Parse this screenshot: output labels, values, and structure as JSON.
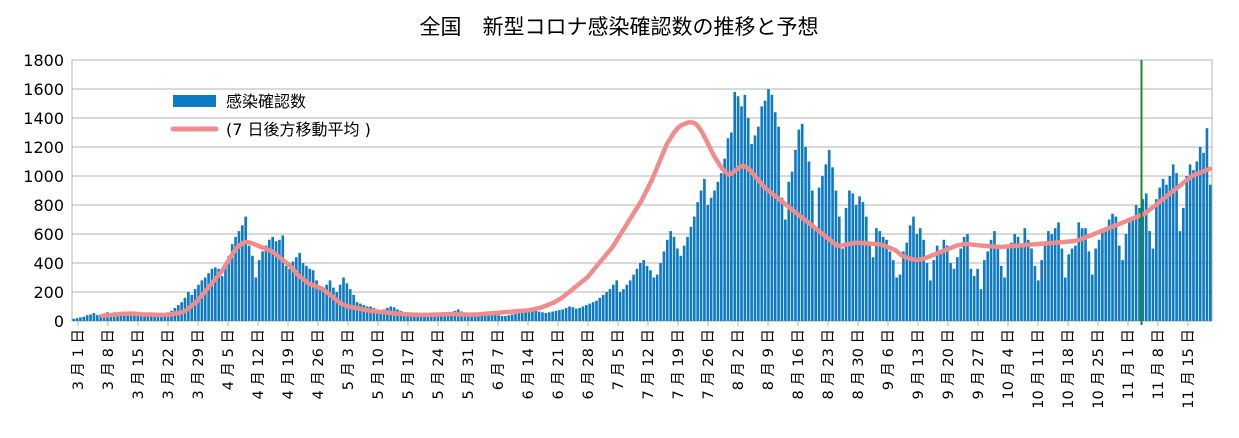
{
  "chart_data": {
    "type": "bar",
    "title": "全国　新型コロナ感染確認数の推移と予想",
    "ylim": [
      0,
      1800
    ],
    "yticks": [
      0,
      200,
      400,
      600,
      800,
      1000,
      1200,
      1400,
      1600,
      1800
    ],
    "grid": true,
    "legend_placement": "top-left",
    "marker_label_index": 35,
    "x_tick_labels": [
      "3 月 1 日",
      "3 月 8 日",
      "3 月 15 日",
      "3 月 22 日",
      "3 月 29 日",
      "4 月 5 日",
      "4 月 12 日",
      "4 月 19 日",
      "4 月 26 日",
      "5 月 3 日",
      "5 月 10 日",
      "5 月 17 日",
      "5 月 24 日",
      "5 月 31 日",
      "6 月 7 日",
      "6 月 14 日",
      "6 月 21 日",
      "6 月 28 日",
      "7 月 5 日",
      "7 月 12 日",
      "7 月 19 日",
      "7 月 26 日",
      "8 月 2 日",
      "8 月 9 日",
      "8 月 16 日",
      "8 月 23 日",
      "8 月 30 日",
      "9 月 6 日",
      "9 月 13 日",
      "9 月 20 日",
      "9 月 27 日",
      "10 月 4 日",
      "10 月 11 日",
      "10 月 18 日",
      "10 月 25 日",
      "11 月 1 日",
      "11 月 8 日",
      "11 月 15 日"
    ],
    "series": [
      {
        "name": "感染確認数",
        "kind": "bar",
        "color": "#0e7ac4",
        "values": [
          15,
          20,
          25,
          30,
          40,
          45,
          55,
          40,
          45,
          50,
          60,
          55,
          60,
          50,
          45,
          50,
          40,
          45,
          40,
          35,
          40,
          45,
          40,
          40,
          35,
          40,
          45,
          50,
          60,
          70,
          90,
          110,
          130,
          160,
          200,
          180,
          220,
          250,
          280,
          300,
          330,
          360,
          370,
          360,
          310,
          400,
          450,
          530,
          580,
          620,
          660,
          720,
          520,
          450,
          300,
          420,
          480,
          520,
          560,
          580,
          550,
          560,
          590,
          380,
          360,
          410,
          440,
          470,
          400,
          380,
          360,
          350,
          280,
          230,
          210,
          250,
          280,
          230,
          200,
          250,
          300,
          260,
          220,
          180,
          130,
          120,
          110,
          100,
          100,
          90,
          80,
          70,
          80,
          90,
          100,
          95,
          80,
          70,
          60,
          60,
          55,
          50,
          45,
          40,
          40,
          35,
          30,
          30,
          35,
          40,
          45,
          50,
          60,
          70,
          80,
          65,
          55,
          50,
          45,
          40,
          35,
          40,
          45,
          50,
          50,
          45,
          40,
          35,
          35,
          40,
          45,
          50,
          60,
          65,
          70,
          75,
          80,
          70,
          65,
          60,
          55,
          60,
          65,
          70,
          75,
          80,
          90,
          100,
          95,
          85,
          90,
          100,
          110,
          120,
          130,
          140,
          160,
          180,
          200,
          220,
          250,
          280,
          200,
          220,
          250,
          280,
          320,
          360,
          400,
          420,
          380,
          350,
          300,
          320,
          400,
          480,
          560,
          620,
          580,
          500,
          450,
          520,
          580,
          650,
          720,
          820,
          900,
          980,
          800,
          850,
          900,
          960,
          1020,
          1120,
          1260,
          1300,
          1580,
          1550,
          1480,
          1560,
          1400,
          1220,
          1280,
          1340,
          1480,
          1520,
          1600,
          1560,
          1440,
          1340,
          850,
          700,
          960,
          1030,
          1180,
          1320,
          1360,
          1200,
          1100,
          900,
          650,
          920,
          1000,
          1080,
          1180,
          1060,
          900,
          720,
          500,
          780,
          900,
          880,
          800,
          860,
          820,
          720,
          520,
          440,
          640,
          620,
          580,
          560,
          480,
          420,
          300,
          320,
          480,
          540,
          660,
          720,
          600,
          640,
          560,
          400,
          280,
          420,
          520,
          480,
          560,
          520,
          400,
          360,
          440,
          500,
          580,
          600,
          360,
          310,
          360,
          220,
          420,
          480,
          560,
          620,
          500,
          380,
          300,
          520,
          540,
          600,
          580,
          520,
          640,
          560,
          500,
          380,
          280,
          420,
          520,
          620,
          600,
          640,
          680,
          500,
          300,
          460,
          500,
          520,
          680,
          640,
          640,
          480,
          320,
          500,
          560,
          620,
          620,
          700,
          740,
          720,
          520,
          420,
          600,
          680,
          720,
          800,
          780,
          840,
          880,
          620,
          500,
          840,
          920,
          980,
          940,
          1000,
          1080,
          1020,
          620,
          780,
          1000,
          1080,
          1040,
          1100,
          1200,
          1160,
          1330,
          940
        ]
      },
      {
        "name": "(7 日後方移動平均 )",
        "kind": "line",
        "color": "#f08c8c",
        "values": [
          35,
          40,
          40,
          42,
          45,
          48,
          50,
          50,
          52,
          50,
          48,
          46,
          45,
          45,
          44,
          42,
          42,
          42,
          43,
          45,
          50,
          55,
          60,
          70,
          90,
          110,
          130,
          160,
          190,
          220,
          250,
          280,
          310,
          340,
          380,
          420,
          460,
          500,
          520,
          540,
          545,
          540,
          530,
          520,
          510,
          500,
          490,
          480,
          460,
          440,
          420,
          400,
          380,
          350,
          320,
          300,
          280,
          260,
          250,
          240,
          230,
          220,
          200,
          180,
          160,
          140,
          120,
          110,
          100,
          95,
          90,
          85,
          80,
          75,
          70,
          68,
          65,
          62,
          60,
          58,
          55,
          52,
          50,
          48,
          46,
          45,
          44,
          43,
          42,
          42,
          42,
          43,
          44,
          45,
          46,
          47,
          48,
          48,
          47,
          46,
          45,
          44,
          44,
          45,
          46,
          48,
          50,
          52,
          54,
          56,
          58,
          60,
          62,
          64,
          66,
          68,
          70,
          72,
          75,
          80,
          85,
          90,
          100,
          110,
          120,
          130,
          145,
          160,
          180,
          200,
          220,
          240,
          260,
          280,
          300,
          330,
          360,
          390,
          420,
          450,
          480,
          510,
          550,
          590,
          630,
          670,
          710,
          750,
          790,
          830,
          880,
          930,
          980,
          1040,
          1100,
          1160,
          1220,
          1260,
          1300,
          1330,
          1350,
          1360,
          1370,
          1370,
          1360,
          1330,
          1290,
          1240,
          1190,
          1140,
          1100,
          1060,
          1030,
          1010,
          1020,
          1040,
          1060,
          1070,
          1060,
          1040,
          1010,
          980,
          950,
          920,
          900,
          880,
          860,
          840,
          820,
          800,
          780,
          760,
          740,
          720,
          700,
          680,
          660,
          640,
          620,
          600,
          580,
          560,
          540,
          520,
          520,
          525,
          530,
          535,
          540,
          540,
          538,
          536,
          534,
          532,
          530,
          528,
          520,
          510,
          500,
          490,
          470,
          450,
          440,
          430,
          425,
          420,
          425,
          430,
          440,
          450,
          460,
          470,
          480,
          490,
          500,
          510,
          520,
          525,
          530,
          530,
          528,
          525,
          522,
          520,
          518,
          516,
          514,
          512,
          510,
          512,
          514,
          516,
          518,
          520,
          522,
          524,
          526,
          528,
          530,
          532,
          534,
          536,
          538,
          540,
          542,
          544,
          546,
          548,
          550,
          555,
          560,
          570,
          580,
          590,
          600,
          610,
          620,
          630,
          640,
          650,
          660,
          670,
          680,
          690,
          700,
          710,
          720,
          730,
          740,
          760,
          780,
          800,
          820,
          840,
          860,
          880,
          900,
          920,
          940,
          960,
          980,
          1000,
          1010,
          1020,
          1030,
          1040,
          1050
        ]
      }
    ]
  }
}
